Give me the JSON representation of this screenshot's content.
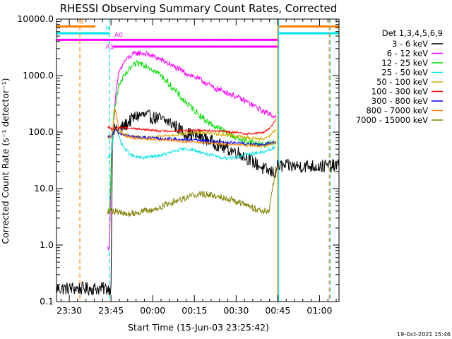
{
  "chart_data": {
    "type": "line",
    "title": "RHESSI Observing Summary Count Rates, Corrected",
    "xlabel": "Start Time (15-Jun-03 23:25:42)",
    "ylabel": "Corrected Count Rate (s⁻¹ detector⁻¹)",
    "y_scale": "log",
    "ylim": [
      0.1,
      10000
    ],
    "xlim_minutes": [
      -4.6,
      97.0
    ],
    "x_ticks": [
      {
        "minute": 0,
        "label": "23:30"
      },
      {
        "minute": 15,
        "label": "23:45"
      },
      {
        "minute": 30,
        "label": "00:00"
      },
      {
        "minute": 45,
        "label": "00:15"
      },
      {
        "minute": 60,
        "label": "00:30"
      },
      {
        "minute": 75,
        "label": "00:45"
      },
      {
        "minute": 90,
        "label": "01:00"
      }
    ],
    "y_ticks": [
      {
        "value": 0.1,
        "label": "0.1"
      },
      {
        "value": 1,
        "label": "1.0"
      },
      {
        "value": 10,
        "label": "10.0"
      },
      {
        "value": 100,
        "label": "100.0"
      },
      {
        "value": 1000,
        "label": "1000.0"
      },
      {
        "value": 10000,
        "label": "10000.0"
      }
    ],
    "legend_title": "Det 1,3,4,5,6,9",
    "series": [
      {
        "name": "3 - 6 keV",
        "color": "#000000",
        "x": [
          -4.6,
          13.8,
          13.9,
          14.3,
          15.0,
          15.5,
          16.5,
          18,
          20,
          22,
          24,
          26,
          28,
          30,
          32,
          34,
          36,
          38,
          40,
          42,
          44,
          46,
          48,
          50,
          52,
          54,
          56,
          58,
          60,
          62,
          64,
          66,
          68,
          70,
          72,
          74.3,
          74.7,
          96.9
        ],
        "y": [
          0.17,
          0.17,
          0.17,
          0.17,
          0.17,
          70,
          120,
          110,
          130,
          160,
          190,
          200,
          190,
          180,
          175,
          160,
          150,
          130,
          110,
          95,
          90,
          85,
          80,
          72,
          65,
          58,
          52,
          48,
          45,
          40,
          35,
          30,
          26,
          22,
          20,
          19,
          25,
          25
        ]
      },
      {
        "name": "6 - 12 keV",
        "color": "#ff00ff",
        "x": [
          13.8,
          14.5,
          15.2,
          16.0,
          17,
          18,
          20,
          22,
          24,
          26,
          28,
          30,
          32,
          34,
          36,
          38,
          40,
          42,
          44,
          46,
          48,
          50,
          52,
          54,
          56,
          58,
          60,
          62,
          64,
          66,
          68,
          70,
          72,
          74.3
        ],
        "y": [
          0.9,
          1.0,
          60,
          180,
          600,
          1200,
          1800,
          2200,
          2500,
          2500,
          2400,
          2200,
          2000,
          1800,
          1600,
          1400,
          1250,
          1100,
          1000,
          900,
          800,
          700,
          600,
          560,
          520,
          470,
          420,
          380,
          340,
          300,
          260,
          230,
          210,
          190
        ]
      },
      {
        "name": "12 - 25 keV",
        "color": "#00e000",
        "x": [
          13.8,
          14.5,
          15.2,
          16.0,
          17,
          18,
          20,
          22,
          24,
          26,
          28,
          30,
          32,
          34,
          36,
          38,
          40,
          42,
          44,
          46,
          48,
          50,
          52,
          54,
          56,
          58,
          60,
          62,
          64,
          66,
          68,
          70,
          72,
          74.3
        ],
        "y": [
          4.0,
          4.0,
          40,
          200,
          450,
          700,
          1000,
          1350,
          1600,
          1650,
          1500,
          1300,
          1100,
          900,
          700,
          550,
          420,
          330,
          270,
          220,
          180,
          150,
          130,
          115,
          100,
          90,
          80,
          72,
          68,
          65,
          62,
          60,
          62,
          70
        ]
      },
      {
        "name": "25 - 50 keV",
        "color": "#00e5e5",
        "x": [
          13.8,
          14.2,
          15.2,
          16.0,
          17,
          18,
          19,
          20,
          22,
          24,
          26,
          28,
          30,
          32,
          34,
          36,
          38,
          40,
          42,
          44,
          46,
          48,
          50,
          52,
          54,
          56,
          58,
          60,
          62,
          64,
          66,
          68,
          70,
          72,
          74.3
        ],
        "y": [
          35,
          35,
          40,
          120,
          110,
          80,
          60,
          50,
          40,
          36,
          35,
          36,
          37,
          38,
          40,
          43,
          46,
          49,
          50,
          49,
          46,
          43,
          40,
          38,
          36,
          35,
          35,
          36,
          38,
          40,
          42,
          43,
          44,
          48,
          55
        ]
      },
      {
        "name": "50 - 100 keV",
        "color": "#d0b000",
        "x": [
          13.8,
          14.5,
          15.2,
          16.5,
          18,
          20,
          22,
          24,
          26,
          28,
          30,
          32,
          34,
          36,
          38,
          40,
          42,
          44,
          46,
          48,
          50,
          52,
          54,
          56,
          58,
          60,
          62,
          64,
          66,
          68,
          70,
          72,
          74.3
        ],
        "y": [
          80,
          85,
          90,
          110,
          100,
          90,
          85,
          82,
          80,
          80,
          80,
          82,
          85,
          88,
          90,
          92,
          95,
          97,
          98,
          98,
          97,
          95,
          92,
          90,
          88,
          85,
          82,
          80,
          78,
          76,
          78,
          85,
          110
        ]
      },
      {
        "name": "100 - 300 keV",
        "color": "#ff0000",
        "x": [
          13.8,
          14.5,
          15.2,
          16.5,
          18,
          20,
          22,
          24,
          26,
          28,
          30,
          32,
          34,
          36,
          38,
          40,
          42,
          44,
          46,
          48,
          50,
          52,
          54,
          56,
          58,
          60,
          62,
          64,
          66,
          68,
          70,
          72,
          74.3
        ],
        "y": [
          120,
          125,
          110,
          115,
          120,
          120,
          118,
          115,
          112,
          110,
          108,
          106,
          104,
          104,
          105,
          106,
          107,
          108,
          108,
          108,
          107,
          106,
          104,
          102,
          100,
          98,
          96,
          94,
          94,
          96,
          100,
          115,
          170
        ]
      },
      {
        "name": "300 - 800 keV",
        "color": "#0000ff",
        "x": [
          13.8,
          14.5,
          15.2,
          16.5,
          18,
          20,
          22,
          24,
          26,
          28,
          30,
          32,
          34,
          36,
          38,
          40,
          42,
          44,
          46,
          48,
          50,
          52,
          54,
          56,
          58,
          60,
          62,
          64,
          66,
          68,
          70,
          72,
          74.3
        ],
        "y": [
          80,
          82,
          85,
          110,
          95,
          88,
          84,
          82,
          80,
          79,
          78,
          77,
          76,
          76,
          75,
          74,
          73,
          72,
          71,
          70,
          69,
          68,
          67,
          66,
          65,
          64,
          63,
          62,
          61,
          60,
          60,
          63,
          68
        ]
      },
      {
        "name": "800 - 7000 keV",
        "color": "#ff8000",
        "x": [
          13.8,
          14.5,
          15.2,
          16.5,
          18,
          20,
          22,
          24,
          26,
          28,
          30,
          32,
          34,
          36,
          38,
          40,
          42,
          44,
          46,
          48,
          50,
          52,
          54,
          56,
          58,
          60,
          62,
          64,
          66,
          68,
          70,
          72,
          74.3
        ],
        "y": [
          75,
          78,
          80,
          250,
          110,
          85,
          80,
          78,
          76,
          75,
          74,
          73,
          72,
          71,
          70,
          69,
          68,
          67,
          66,
          65,
          64,
          63,
          62,
          61,
          60,
          60,
          59,
          58,
          58,
          57,
          58,
          60,
          65
        ]
      },
      {
        "name": "7000 - 15000 keV",
        "color": "#808000",
        "x": [
          13.8,
          15.2,
          16,
          18,
          20,
          22,
          24,
          26,
          28,
          30,
          32,
          34,
          36,
          38,
          40,
          42,
          44,
          46,
          48,
          50,
          52,
          54,
          56,
          58,
          60,
          62,
          64,
          66,
          68,
          70,
          72,
          74.3
        ],
        "y": [
          4.0,
          4.2,
          4.0,
          3.8,
          3.5,
          3.6,
          3.8,
          3.9,
          4.0,
          4.2,
          4.5,
          5.0,
          5.5,
          6.0,
          6.5,
          7.0,
          7.5,
          8.0,
          8.0,
          7.8,
          7.5,
          7.2,
          7.0,
          6.5,
          6.0,
          5.5,
          5.0,
          4.5,
          4.2,
          4.0,
          4.2,
          25
        ]
      }
    ],
    "observing_flags": [
      {
        "label": "S",
        "color": "#ff8000",
        "segments": [
          [
            -4.6,
            9.4
          ],
          [
            75.4,
            97.0
          ]
        ],
        "y": 7400
      },
      {
        "label": "N",
        "color": "#00e5e5",
        "segments": [
          [
            -4.6,
            14.4
          ],
          [
            75.4,
            97.0
          ]
        ],
        "y": 5600
      },
      {
        "label": "A0",
        "color": "#ff00ff",
        "segments": [
          [
            -4.6,
            75.4
          ]
        ],
        "y": 4300
      },
      {
        "label": "A1",
        "color": "#ff00ff",
        "segments": [
          [
            15.6,
            75.4
          ]
        ],
        "y": 3250
      }
    ],
    "vertical_markers": [
      {
        "minute": 3.8,
        "color": "#ff8000",
        "style": "dashed"
      },
      {
        "minute": 14.5,
        "color": "#00e5e5",
        "style": "dashed"
      },
      {
        "minute": 74.9,
        "color": "#ff8000",
        "style": "solid"
      },
      {
        "minute": 75.3,
        "color": "#00e5e5",
        "style": "solid"
      },
      {
        "minute": 93.5,
        "color": "#ff8000",
        "style": "dashed"
      },
      {
        "minute": 93.8,
        "color": "#00e5e5",
        "style": "dashed"
      }
    ],
    "dotted_flag": {
      "color": "#ff00ff",
      "minutes": [
        48,
        54,
        58,
        63,
        67,
        72
      ],
      "y": 4300
    },
    "date_stamp": "19-Oct-2021 15:46"
  }
}
